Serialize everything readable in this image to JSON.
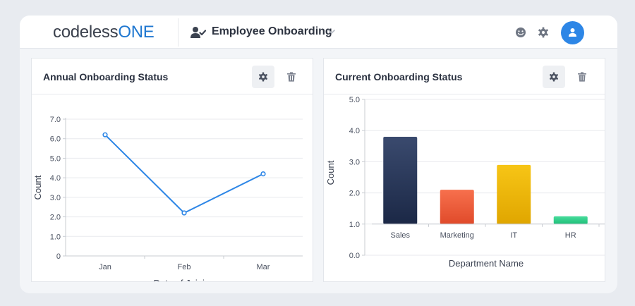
{
  "header": {
    "logo_main": "codeless",
    "logo_accent": "ONE",
    "app_title": "Employee Onboarding"
  },
  "icons": {
    "app": "user-check-icon",
    "app_dropdown": "chevron-down-icon",
    "feedback": "smiley-icon",
    "settings": "gear-icon",
    "avatar": "user-icon",
    "card_settings": "gear-icon",
    "card_delete": "trash-icon"
  },
  "colors": {
    "brand_accent": "#1f77d0",
    "avatar": "#2d86e6",
    "line": "#2d86e6"
  },
  "panels": {
    "annual": {
      "title": "Annual Onboarding Status"
    },
    "current": {
      "title": "Current Onboarding Status"
    }
  },
  "charts": [
    {
      "type": "line",
      "categories": [
        "Jan",
        "Feb",
        "Mar"
      ],
      "values": [
        6.2,
        2.2,
        4.2
      ],
      "xlabel": "Date of Joining",
      "ylabel": "Count",
      "ylim": [
        0,
        7
      ],
      "yticks": [
        "0",
        "1.0",
        "2.0",
        "3.0",
        "4.0",
        "5.0",
        "6.0",
        "7.0"
      ],
      "grid": true
    },
    {
      "type": "bar",
      "categories": [
        "Sales",
        "Marketing",
        "IT",
        "HR"
      ],
      "values": [
        3.8,
        2.1,
        2.9,
        1.25
      ],
      "xlabel": "Department Name",
      "ylabel": "Count",
      "ylim": [
        0,
        5
      ],
      "yticks": [
        "0.0",
        "1.0",
        "2.0",
        "3.0",
        "4.0",
        "5.0"
      ],
      "grid": true,
      "bar_colors": [
        [
          "#3a4a6e",
          "#1b2846"
        ],
        [
          "#f7704d",
          "#e04a2a"
        ],
        [
          "#f7c516",
          "#e0a600"
        ],
        [
          "#48dc9c",
          "#1fbf78"
        ]
      ]
    }
  ]
}
